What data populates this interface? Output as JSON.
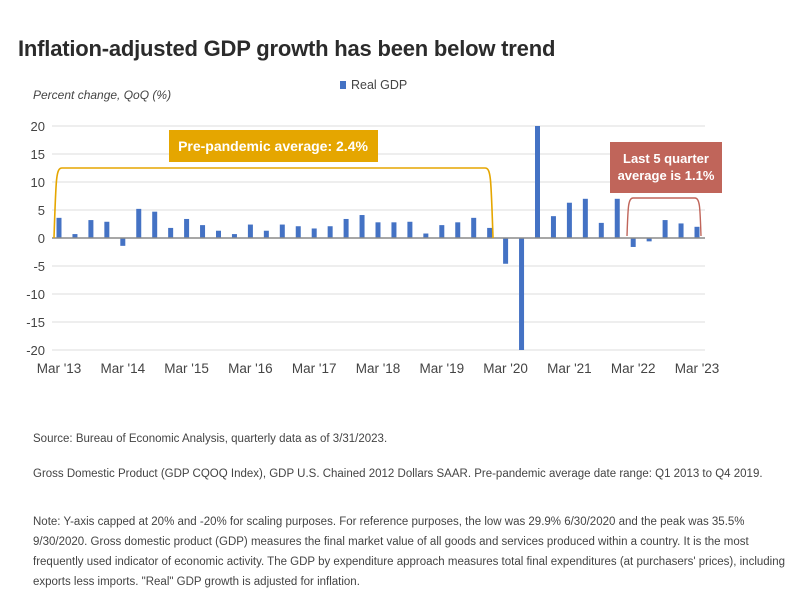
{
  "chart_data": {
    "type": "bar",
    "title": "Inflation-adjusted GDP growth has been below trend",
    "ylabel": "Percent change, QoQ (%)",
    "xlabel": "",
    "ylim": [
      -20,
      20
    ],
    "yticks": [
      20,
      15,
      10,
      5,
      0,
      -5,
      -10,
      -15,
      -20
    ],
    "grid": true,
    "legend": {
      "position": "top-center",
      "entries": [
        {
          "name": "Real GDP",
          "color": "#4472C4"
        }
      ]
    },
    "x_tick_labels": [
      "Mar '13",
      "Mar '14",
      "Mar '15",
      "Mar '16",
      "Mar '17",
      "Mar '18",
      "Mar '19",
      "Mar '20",
      "Mar '21",
      "Mar '22",
      "Mar '23"
    ],
    "categories": [
      "Q1 2013",
      "Q2 2013",
      "Q3 2013",
      "Q4 2013",
      "Q1 2014",
      "Q2 2014",
      "Q3 2014",
      "Q4 2014",
      "Q1 2015",
      "Q2 2015",
      "Q3 2015",
      "Q4 2015",
      "Q1 2016",
      "Q2 2016",
      "Q3 2016",
      "Q4 2016",
      "Q1 2017",
      "Q2 2017",
      "Q3 2017",
      "Q4 2017",
      "Q1 2018",
      "Q2 2018",
      "Q3 2018",
      "Q4 2018",
      "Q1 2019",
      "Q2 2019",
      "Q3 2019",
      "Q4 2019",
      "Q1 2020",
      "Q2 2020",
      "Q3 2020",
      "Q4 2020",
      "Q1 2021",
      "Q2 2021",
      "Q3 2021",
      "Q4 2021",
      "Q1 2022",
      "Q2 2022",
      "Q3 2022",
      "Q4 2022",
      "Q1 2023"
    ],
    "series": [
      {
        "name": "Real GDP",
        "color": "#4472C4",
        "values": [
          3.6,
          0.7,
          3.2,
          2.9,
          -1.4,
          5.2,
          4.7,
          1.8,
          3.4,
          2.3,
          1.3,
          0.7,
          2.4,
          1.3,
          2.4,
          2.1,
          1.7,
          2.1,
          3.4,
          4.1,
          2.8,
          2.8,
          2.9,
          0.8,
          2.3,
          2.8,
          3.6,
          1.8,
          -4.6,
          -20,
          20,
          3.9,
          6.3,
          7.0,
          2.7,
          7.0,
          -1.6,
          -0.6,
          3.2,
          2.6,
          2.0
        ]
      }
    ],
    "annotations": [
      {
        "text": "Pre-pandemic average: 2.4%",
        "color": "#E5A600",
        "bracket_from": "Q1 2013",
        "bracket_to": "Q4 2019",
        "bracket_level": 12.5
      },
      {
        "text": "Last 5 quarter average is 1.1%",
        "line1": "Last 5 quarter",
        "line2": "average is 1.1%",
        "color": "#C0655A",
        "bracket_from": "Q1 2022",
        "bracket_to": "Q1 2023",
        "bracket_level": 7.5
      }
    ]
  },
  "footer": {
    "source": "Source: Bureau of Economic Analysis, quarterly data as of 3/31/2023.",
    "definition": "Gross Domestic Product (GDP CQOQ Index), GDP U.S. Chained 2012 Dollars SAAR. Pre-pandemic average date range: Q1 2013 to Q4 2019.",
    "note": "Note: Y-axis capped at 20% and -20% for scaling purposes. For reference purposes, the low was 29.9% 6/30/2020 and the peak was 35.5% 9/30/2020. Gross domestic product (GDP) measures the final market value of all goods and services produced within a country. It is the most frequently used indicator of economic activity. The GDP by expenditure approach measures total final expenditures (at purchasers' prices), including exports less imports. \"Real\" GDP growth is adjusted for inflation."
  }
}
